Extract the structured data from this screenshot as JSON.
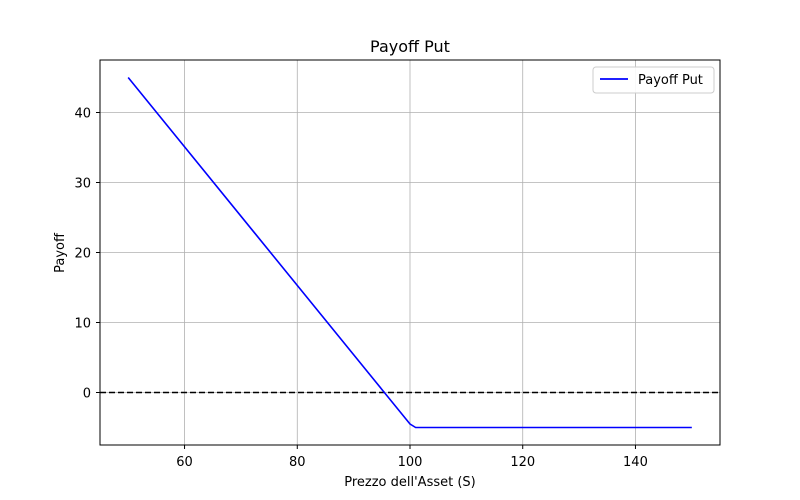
{
  "chart_data": {
    "type": "line",
    "title": "Payoff Put",
    "xlabel": "Prezzo dell'Asset (S)",
    "ylabel": "Payoff",
    "xlim": [
      45,
      155
    ],
    "ylim": [
      -7.5,
      47.5
    ],
    "xticks": [
      60,
      80,
      100,
      120,
      140
    ],
    "yticks": [
      0,
      10,
      20,
      30,
      40
    ],
    "grid": true,
    "legend": {
      "placement": "top-right"
    },
    "series": [
      {
        "name": "Payoff Put",
        "color": "#0000ff",
        "x": [
          50,
          100,
          101,
          150
        ],
        "y": [
          45,
          -4.5,
          -5,
          -5
        ]
      }
    ],
    "reference_line": {
      "y": 0,
      "style": "dashed",
      "color": "#000000"
    }
  }
}
